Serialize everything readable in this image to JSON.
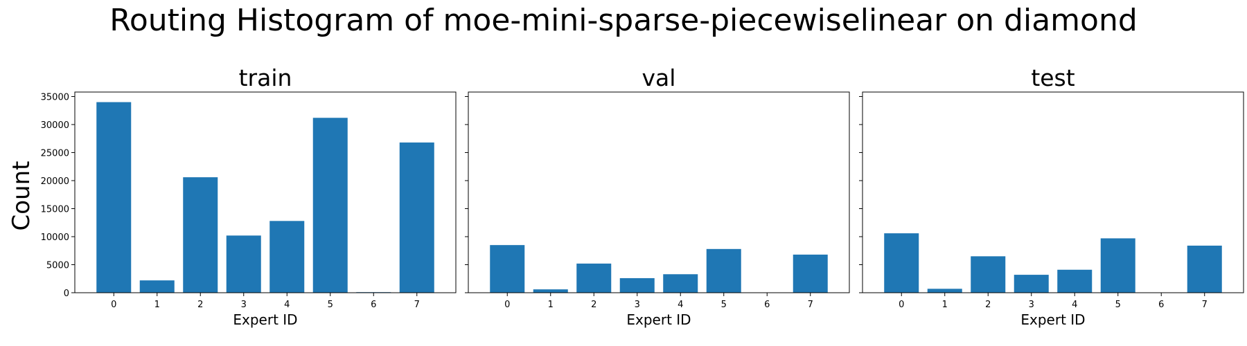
{
  "suptitle": "Routing Histogram of moe-mini-sparse-piecewiselinear on diamond",
  "ylabel": "Count",
  "bar_color": "#1f77b4",
  "chart_data": [
    {
      "type": "bar",
      "title": "train",
      "xlabel": "Expert ID",
      "categories": [
        "0",
        "1",
        "2",
        "3",
        "4",
        "5",
        "6",
        "7"
      ],
      "values": [
        34000,
        2200,
        20600,
        10200,
        12800,
        31200,
        100,
        26800
      ],
      "ylim": [
        0,
        35800
      ],
      "yticks": [
        0,
        5000,
        10000,
        15000,
        20000,
        25000,
        30000,
        35000
      ],
      "ytick_labels": [
        "0",
        "5000",
        "10000",
        "15000",
        "20000",
        "25000",
        "30000",
        "35000"
      ]
    },
    {
      "type": "bar",
      "title": "val",
      "xlabel": "Expert ID",
      "categories": [
        "0",
        "1",
        "2",
        "3",
        "4",
        "5",
        "6",
        "7"
      ],
      "values": [
        8500,
        600,
        5200,
        2600,
        3300,
        7800,
        20,
        6800
      ],
      "ylim": [
        0,
        35800
      ]
    },
    {
      "type": "bar",
      "title": "test",
      "xlabel": "Expert ID",
      "categories": [
        "0",
        "1",
        "2",
        "3",
        "4",
        "5",
        "6",
        "7"
      ],
      "values": [
        10600,
        700,
        6500,
        3200,
        4100,
        9700,
        25,
        8400
      ],
      "ylim": [
        0,
        35800
      ]
    }
  ]
}
